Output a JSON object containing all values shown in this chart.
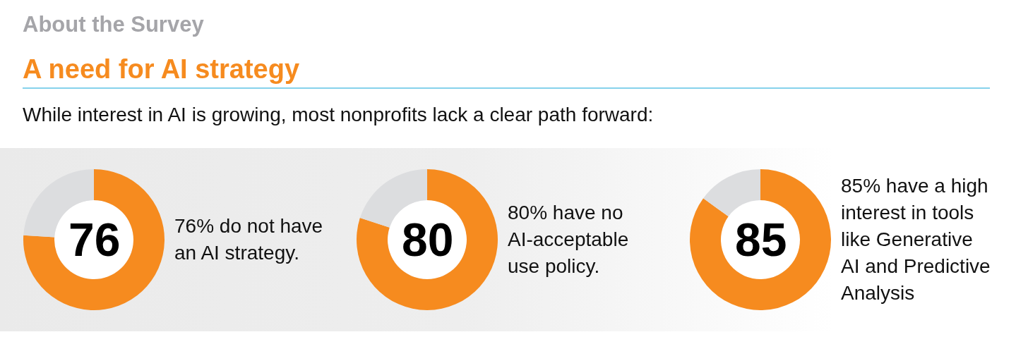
{
  "chart_data": [
    {
      "type": "other",
      "title": "About the Survey",
      "subtitle": "A need for AI strategy",
      "annotations": [
        "While interest in AI is growing, most nonprofits lack a clear path forward:"
      ]
    },
    {
      "type": "donut",
      "categories": [
        null,
        null
      ],
      "values": [
        76,
        24
      ],
      "colors": [
        "#f68b1f",
        "#dcdddf"
      ],
      "annotations": [
        "76",
        "76% do not have\nan AI strategy."
      ]
    },
    {
      "type": "donut",
      "categories": [
        null,
        null
      ],
      "values": [
        80,
        20
      ],
      "colors": [
        "#f68b1f",
        "#dcdddf"
      ],
      "annotations": [
        "80",
        "80% have no\nAI-acceptable\nuse policy."
      ]
    },
    {
      "type": "donut",
      "categories": [
        null,
        null
      ],
      "values": [
        85,
        15
      ],
      "colors": [
        "#f68b1f",
        "#dcdddf"
      ],
      "annotations": [
        "85",
        "85% have a high\ninterest in tools\nlike Generative\nAI and Predictive\nAnalysis"
      ]
    }
  ]
}
